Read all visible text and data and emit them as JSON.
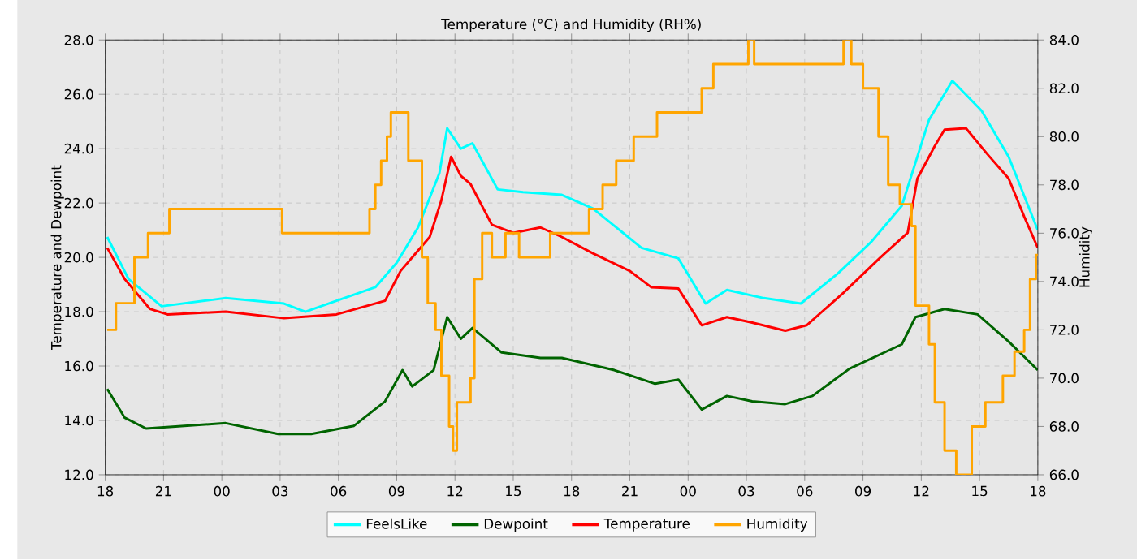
{
  "chart_data": {
    "type": "line",
    "title": "Temperature (°C) and Humidity (RH%)",
    "ylabel": "Temperature and Dewpoint",
    "y2label": "Humidity",
    "xlim": [
      18,
      66
    ],
    "xticks": [
      {
        "value": 18,
        "label": "18"
      },
      {
        "value": 21,
        "label": "21"
      },
      {
        "value": 24,
        "label": "00"
      },
      {
        "value": 27,
        "label": "03"
      },
      {
        "value": 30,
        "label": "06"
      },
      {
        "value": 33,
        "label": "09"
      },
      {
        "value": 36,
        "label": "12"
      },
      {
        "value": 39,
        "label": "15"
      },
      {
        "value": 42,
        "label": "18"
      },
      {
        "value": 45,
        "label": "21"
      },
      {
        "value": 48,
        "label": "00"
      },
      {
        "value": 51,
        "label": "03"
      },
      {
        "value": 54,
        "label": "06"
      },
      {
        "value": 57,
        "label": "09"
      },
      {
        "value": 60,
        "label": "12"
      },
      {
        "value": 63,
        "label": "15"
      },
      {
        "value": 66,
        "label": "18"
      }
    ],
    "ylim": [
      12,
      28
    ],
    "yticks": [
      {
        "value": 12,
        "label": "12.0"
      },
      {
        "value": 14,
        "label": "14.0"
      },
      {
        "value": 16,
        "label": "16.0"
      },
      {
        "value": 18,
        "label": "18.0"
      },
      {
        "value": 20,
        "label": "20.0"
      },
      {
        "value": 22,
        "label": "22.0"
      },
      {
        "value": 24,
        "label": "24.0"
      },
      {
        "value": 26,
        "label": "26.0"
      },
      {
        "value": 28,
        "label": "28.0"
      }
    ],
    "y2lim": [
      66,
      84
    ],
    "y2ticks": [
      {
        "value": 66,
        "label": "66.0"
      },
      {
        "value": 68,
        "label": "68.0"
      },
      {
        "value": 70,
        "label": "70.0"
      },
      {
        "value": 72,
        "label": "72.0"
      },
      {
        "value": 74,
        "label": "74.0"
      },
      {
        "value": 76,
        "label": "76.0"
      },
      {
        "value": 78,
        "label": "78.0"
      },
      {
        "value": 80,
        "label": "80.0"
      },
      {
        "value": 82,
        "label": "82.0"
      },
      {
        "value": 84,
        "label": "84.0"
      }
    ],
    "grid": true,
    "legend": "bottom",
    "series": [
      {
        "name": "FeelsLike",
        "color": "#00ffff",
        "x": [
          18.1,
          19.2,
          20.9,
          24.2,
          27.2,
          28.3,
          29.9,
          31.9,
          33.0,
          34.1,
          35.2,
          35.6,
          36.3,
          36.9,
          38.2,
          39.5,
          41.5,
          43.1,
          45.6,
          47.5,
          48.9,
          50.0,
          51.9,
          53.8,
          55.7,
          57.4,
          59.0,
          60.4,
          61.6,
          63.1,
          64.5,
          66.0
        ],
        "values": [
          20.75,
          19.2,
          18.2,
          18.5,
          18.3,
          18.0,
          18.4,
          18.9,
          19.8,
          21.1,
          23.1,
          24.75,
          24.0,
          24.2,
          22.5,
          22.4,
          22.3,
          21.8,
          20.35,
          19.96,
          18.3,
          18.8,
          18.5,
          18.3,
          19.4,
          20.55,
          21.9,
          25.06,
          26.5,
          25.4,
          23.7,
          21.0
        ]
      },
      {
        "name": "Dewpoint",
        "color": "#006400",
        "x": [
          18.1,
          19.0,
          20.1,
          24.2,
          26.9,
          28.6,
          30.8,
          32.4,
          33.3,
          33.8,
          34.9,
          35.6,
          36.3,
          36.9,
          38.4,
          40.4,
          41.5,
          44.2,
          46.3,
          47.5,
          48.7,
          50.0,
          51.3,
          53.0,
          54.4,
          56.3,
          59.0,
          59.7,
          61.2,
          62.9,
          64.5,
          66.0
        ],
        "values": [
          15.16,
          14.1,
          13.7,
          13.9,
          13.5,
          13.5,
          13.8,
          14.7,
          15.85,
          15.25,
          15.85,
          17.8,
          17.0,
          17.4,
          16.5,
          16.3,
          16.3,
          15.85,
          15.35,
          15.5,
          14.4,
          14.9,
          14.7,
          14.6,
          14.9,
          15.9,
          16.8,
          17.8,
          18.1,
          17.9,
          16.9,
          15.85
        ]
      },
      {
        "name": "Temperature",
        "color": "#ff0000",
        "x": [
          18.1,
          19.0,
          20.3,
          21.2,
          24.2,
          27.2,
          29.9,
          32.4,
          33.2,
          34.7,
          35.3,
          35.8,
          36.3,
          36.8,
          37.9,
          39.0,
          40.4,
          41.5,
          43.1,
          45.0,
          46.1,
          47.5,
          48.7,
          50.0,
          51.3,
          53.0,
          54.1,
          56.0,
          57.9,
          59.3,
          59.8,
          60.7,
          61.2,
          62.3,
          63.4,
          64.5,
          65.3,
          66.0
        ],
        "values": [
          20.35,
          19.2,
          18.1,
          17.9,
          18.0,
          17.76,
          17.9,
          18.4,
          19.5,
          20.75,
          22.1,
          23.7,
          23.0,
          22.7,
          21.2,
          20.9,
          21.1,
          20.75,
          20.15,
          19.5,
          18.9,
          18.85,
          17.5,
          17.8,
          17.6,
          17.3,
          17.5,
          18.7,
          20.0,
          20.9,
          22.9,
          24.1,
          24.7,
          24.75,
          23.8,
          22.9,
          21.5,
          20.35
        ]
      },
      {
        "name": "Humidity",
        "color": "#ffa500",
        "type": "step",
        "axis": "y2",
        "x": [
          18.1,
          18.55,
          19.5,
          20.2,
          21.3,
          27.1,
          31.6,
          31.9,
          32.2,
          32.5,
          32.7,
          33.6,
          34.3,
          34.6,
          35.0,
          35.3,
          35.7,
          35.9,
          36.1,
          36.8,
          37.0,
          37.4,
          37.9,
          38.6,
          39.3,
          40.9,
          42.9,
          43.6,
          44.3,
          45.2,
          46.4,
          48.7,
          49.3,
          51.1,
          51.4,
          56.0,
          56.4,
          57.0,
          57.8,
          58.3,
          58.9,
          59.5,
          59.7,
          60.4,
          60.7,
          61.2,
          61.8,
          62.6,
          63.3,
          64.2,
          64.8,
          65.3,
          65.6,
          65.9,
          66.0
        ],
        "values": [
          72.0,
          73.1,
          75.0,
          76.0,
          77.0,
          76.0,
          77.0,
          78.0,
          79.0,
          80.0,
          81.0,
          79.0,
          75.0,
          73.1,
          72.0,
          70.1,
          68.0,
          67.0,
          69.0,
          70.0,
          74.1,
          76.0,
          75.0,
          76.0,
          75.0,
          76.0,
          77.0,
          78.0,
          79.0,
          80.0,
          81.0,
          82.0,
          83.0,
          84.0,
          83.0,
          84.0,
          83.0,
          82.0,
          80.0,
          78.0,
          77.2,
          76.3,
          73.0,
          71.4,
          69.0,
          67.0,
          66.0,
          68.0,
          69.0,
          70.1,
          71.1,
          72.0,
          74.1,
          75.1,
          75.1
        ]
      }
    ]
  }
}
